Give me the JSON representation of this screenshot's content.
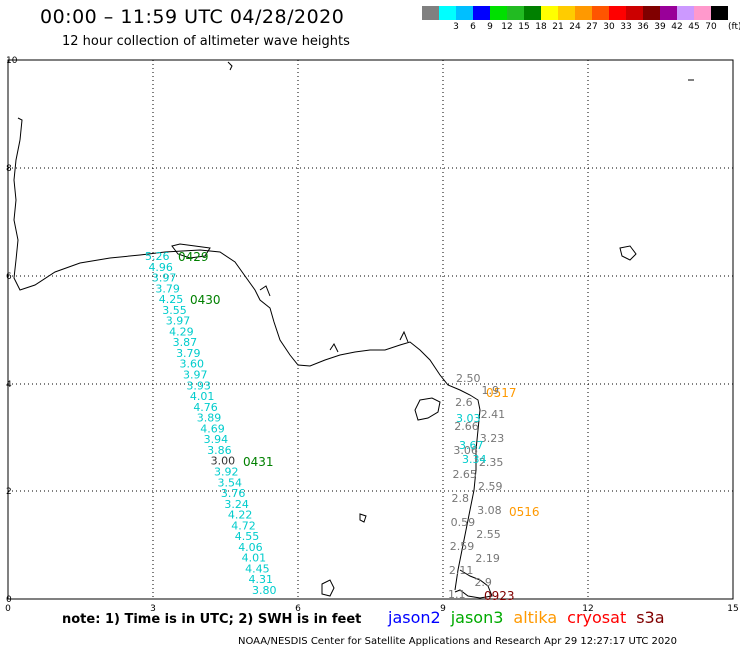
{
  "header": {
    "title": "00:00 – 11:59 UTC 04/28/2020",
    "subtitle": "12 hour collection of altimeter wave heights"
  },
  "legend": {
    "unit": "(ft)",
    "swatches": [
      {
        "color": "#808080",
        "label": ""
      },
      {
        "color": "#00ffff",
        "label": "3"
      },
      {
        "color": "#00bfff",
        "label": "6"
      },
      {
        "color": "#0000ff",
        "label": "9"
      },
      {
        "color": "#00e000",
        "label": "12"
      },
      {
        "color": "#22bb22",
        "label": "15"
      },
      {
        "color": "#008000",
        "label": "18"
      },
      {
        "color": "#ffff00",
        "label": "21"
      },
      {
        "color": "#ffcc00",
        "label": "24"
      },
      {
        "color": "#ff9900",
        "label": "27"
      },
      {
        "color": "#ff5500",
        "label": "30"
      },
      {
        "color": "#ff0000",
        "label": "33"
      },
      {
        "color": "#cc0000",
        "label": "36"
      },
      {
        "color": "#800000",
        "label": "39"
      },
      {
        "color": "#990099",
        "label": "42"
      },
      {
        "color": "#cc99ff",
        "label": "45"
      },
      {
        "color": "#ff99cc",
        "label": "70"
      },
      {
        "color": "#000000",
        "label": ""
      }
    ]
  },
  "axes": {
    "x_ticks": [
      "0",
      "3",
      "6",
      "9",
      "12",
      "15"
    ],
    "y_ticks": [
      "0",
      "2",
      "4",
      "6",
      "8",
      "10"
    ]
  },
  "passes": [
    {
      "label": "0429",
      "color": "#008000"
    },
    {
      "label": "0430",
      "color": "#008000"
    },
    {
      "label": "0431",
      "color": "#008000"
    },
    {
      "label": "0517",
      "color": "#ff9900"
    },
    {
      "label": "0516",
      "color": "#ff9900"
    },
    {
      "label": "0923",
      "color": "#800000"
    }
  ],
  "track_left": {
    "color": "#00cccc",
    "values": [
      "5.26",
      "4.96",
      "3.97",
      "3.79",
      "4.25",
      "3.55",
      "3.97",
      "4.29",
      "3.87",
      "3.79",
      "3.60",
      "3.97",
      "3.93",
      "4.01",
      "4.76",
      "3.89",
      "4.69",
      "3.94",
      "3.86",
      "3.00",
      "3.92",
      "3.54",
      "3.76",
      "3.24",
      "4.22",
      "4.72",
      "4.55",
      "4.06",
      "4.01",
      "4.45",
      "4.31",
      "3.80"
    ]
  },
  "track_right_cyan": {
    "color": "#00cccc",
    "values": [
      "3.03",
      "3.67",
      "3.34"
    ]
  },
  "track_right_gray": {
    "color": "#777777",
    "values": [
      "2.50",
      "1.9",
      "2.6",
      "2.41",
      "2.66",
      "3.23",
      "3.06",
      "2.35",
      "2.65",
      "2.59",
      "2.8",
      "3.08",
      "0.59",
      "2.55",
      "2.59",
      "2.19",
      "2.11",
      "2.9",
      "1.1"
    ]
  },
  "note": "note:  1) Time is in UTC;  2) SWH is in feet",
  "satellites": [
    {
      "name": "jason2",
      "color": "#0000ff"
    },
    {
      "name": "jason3",
      "color": "#00aa00"
    },
    {
      "name": "altika",
      "color": "#ff9900"
    },
    {
      "name": "cryosat",
      "color": "#ff0000"
    },
    {
      "name": "s3a",
      "color": "#800000"
    }
  ],
  "credit": "NOAA/NESDIS Center for Satellite Applications and Research    Apr 29 12:27:17 UTC 2020"
}
